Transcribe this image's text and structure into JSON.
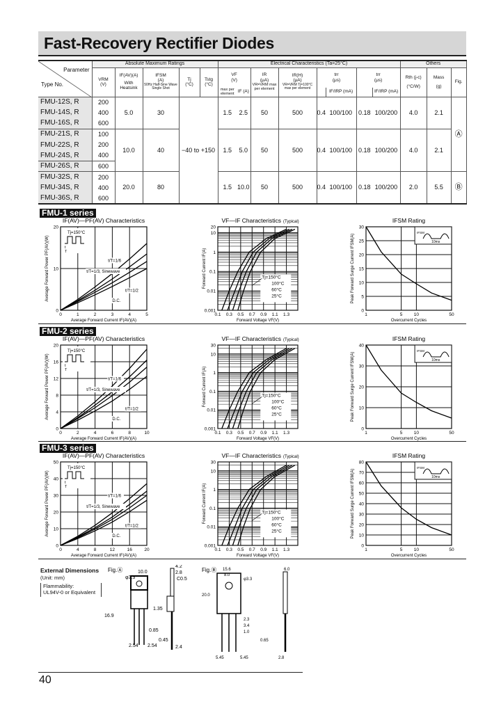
{
  "title": "Fast-Recovery Rectifier Diodes",
  "table": {
    "group_headers": {
      "amr": "Absolute Maximum Ratings",
      "ec": "Electrical Characteristics (Ta=25°C)",
      "others": "Others"
    },
    "headers": {
      "parameter": "Parameter",
      "type_no": "Type No.",
      "vrm": "VRM",
      "vrm_unit": "(V)",
      "ifav": "IF(AV)(A)",
      "ifav_cond": "With Heatsink",
      "ifsm": "IFSM",
      "ifsm_unit": "(A)",
      "ifsm_cond": "50Hz Half-Sine Wave Single Shot",
      "tj": "Tj",
      "tj_unit": "(°C)",
      "tstg": "Tstg",
      "tstg_unit": "(°C)",
      "vf": "VF",
      "vf_unit": "(V)",
      "vf_cond": "max per element",
      "if_cond": "IF (A)",
      "ir": "IR",
      "ir_unit": "(μA)",
      "ir_cond": "VR=VRM max per element",
      "irh": "IR(H)",
      "irh_unit": "(μA)",
      "irh_cond": "VR=VRM Tj=100°C max per element",
      "trr1": "trr",
      "trr1_unit": "(μs)",
      "trr1_cond": "IF/IRP (mA)",
      "trr2": "trr",
      "trr2_unit": "(μs)",
      "trr2_cond": "IF/IRP (mA)",
      "rth": "Rth (j-c)",
      "rth_unit": "(°C/W)",
      "mass": "Mass",
      "mass_unit": "(g)",
      "fig": "Fig."
    },
    "rows": [
      {
        "type": "FMU-12S, R",
        "vrm": "200"
      },
      {
        "type": "FMU-14S, R",
        "vrm": "400"
      },
      {
        "type": "FMU-16S, R",
        "vrm": "600"
      },
      {
        "type": "FMU-21S, R",
        "vrm": "100"
      },
      {
        "type": "FMU-22S, R",
        "vrm": "200"
      },
      {
        "type": "FMU-24S, R",
        "vrm": "400"
      },
      {
        "type": "FMU-26S, R",
        "vrm": "600"
      },
      {
        "type": "FMU-32S, R",
        "vrm": "200"
      },
      {
        "type": "FMU-34S, R",
        "vrm": "400"
      },
      {
        "type": "FMU-36S, R",
        "vrm": "600"
      }
    ],
    "groups": [
      {
        "ifav": "5.0",
        "ifsm": "30",
        "vf": "1.5",
        "if": "2.5",
        "ir": "50",
        "irh": "500",
        "trr1": "0.4",
        "cond1": "100/100",
        "trr2": "0.18",
        "cond2": "100/200",
        "rth": "4.0",
        "mass": "2.1"
      },
      {
        "ifav": "10.0",
        "ifsm": "40",
        "vf": "1.5",
        "if": "5.0",
        "ir": "50",
        "irh": "500",
        "trr1": "0.4",
        "cond1": "100/100",
        "trr2": "0.18",
        "cond2": "100/200",
        "rth": "4.0",
        "mass": "2.1"
      },
      {
        "ifav": "20.0",
        "ifsm": "80",
        "vf": "1.5",
        "if": "10.0",
        "ir": "50",
        "irh": "500",
        "trr1": "0.4",
        "cond1": "100/100",
        "trr2": "0.18",
        "cond2": "100/200",
        "rth": "2.0",
        "mass": "5.5"
      }
    ],
    "temp_range": "−40 to +150",
    "figs": [
      "Ⓐ",
      "Ⓑ"
    ]
  },
  "series_tags": [
    "FMU-1 series",
    "FMU-2 series",
    "FMU-3 series"
  ],
  "chart_data": [
    {
      "type": "line",
      "title": "IF(AV)—PF(AV) Characteristics",
      "xlabel": "Average Forward Current  IF(AV)(A)",
      "ylabel": "Average Forward Power  PF(AV)(W)",
      "xlim": [
        0,
        5
      ],
      "ylim": [
        0,
        20
      ],
      "xticks": [
        0,
        1,
        2,
        3,
        4,
        5
      ],
      "yticks": [
        0,
        10,
        20
      ],
      "xscale": "linear",
      "yscale": "linear",
      "inset": "Tj=150°C",
      "x": [
        0,
        1,
        2,
        3,
        4,
        5
      ],
      "series": [
        {
          "name": "t/T=1/6",
          "values": [
            0,
            2.6,
            5.6,
            8.8,
            12.3,
            16
          ]
        },
        {
          "name": "t/T=1/3, Sinewave",
          "values": [
            0,
            2.3,
            4.8,
            7.5,
            10.4,
            13.5
          ]
        },
        {
          "name": "t/T=1/2",
          "values": [
            0,
            2.1,
            4.3,
            6.6,
            9.1,
            11.7
          ]
        },
        {
          "name": "D.C.",
          "values": [
            0,
            1.8,
            3.7,
            5.7,
            7.8,
            10
          ]
        }
      ]
    },
    {
      "type": "line",
      "title": "VF—IF Characteristics",
      "title_note": "(Typical)",
      "xlabel": "Forward Voltage  VF(V)",
      "ylabel": "Forward Current  IF(A)",
      "xlim": [
        0.1,
        1.5
      ],
      "ylim": [
        0.001,
        20
      ],
      "xticks": [
        0.1,
        0.3,
        0.5,
        0.7,
        0.9,
        1.1,
        1.3
      ],
      "yticks": [
        0.001,
        0.01,
        0.1,
        1,
        10,
        20
      ],
      "xscale": "linear",
      "yscale": "log",
      "series": [
        {
          "name": "Tj=150°C",
          "x": [
            0.17,
            0.3,
            0.45,
            0.65,
            0.95,
            1.3
          ],
          "values": [
            0.001,
            0.01,
            0.1,
            1,
            5,
            15
          ]
        },
        {
          "name": "100°C",
          "x": [
            0.27,
            0.4,
            0.53,
            0.72,
            1.0,
            1.35
          ],
          "values": [
            0.001,
            0.01,
            0.1,
            1,
            5,
            15
          ]
        },
        {
          "name": "60°C",
          "x": [
            0.36,
            0.47,
            0.6,
            0.78,
            1.05,
            1.4
          ],
          "values": [
            0.001,
            0.01,
            0.1,
            1,
            5,
            15
          ]
        },
        {
          "name": "25°C",
          "x": [
            0.45,
            0.55,
            0.67,
            0.85,
            1.1,
            1.45
          ],
          "values": [
            0.001,
            0.01,
            0.1,
            1,
            5,
            15
          ]
        }
      ]
    },
    {
      "type": "line",
      "title": "IFSM  Rating",
      "xlabel": "Overcurrent Cycles",
      "ylabel": "Peak Forward Surge Current  IFSM(A)",
      "xlim": [
        1,
        50
      ],
      "ylim": [
        0,
        30
      ],
      "xticks": [
        1,
        5,
        10,
        50
      ],
      "yticks": [
        0,
        5,
        10,
        15,
        20,
        25,
        30
      ],
      "xscale": "log",
      "yscale": "linear",
      "inset": "10ms",
      "series": [
        {
          "x": [
            1,
            2,
            5,
            10,
            20,
            50
          ],
          "values": [
            30,
            21,
            13,
            9.5,
            6.2,
            3.6
          ]
        }
      ]
    },
    {
      "type": "line",
      "title": "IF(AV)—PF(AV) Characteristics",
      "xlabel": "Average Forward Current  IF(AV)(A)",
      "ylabel": "Average Forward Power  PF(AV)(W)",
      "xlim": [
        0,
        10
      ],
      "ylim": [
        0,
        20
      ],
      "xticks": [
        0,
        2,
        4,
        6,
        8,
        10
      ],
      "yticks": [
        0,
        4,
        8,
        12,
        16,
        20
      ],
      "xscale": "linear",
      "yscale": "linear",
      "inset": "Tj=150°C",
      "x": [
        0,
        2,
        4,
        6,
        8,
        10
      ],
      "series": [
        {
          "name": "t/T=1/6",
          "values": [
            0,
            3,
            6.4,
            10.2,
            14.4,
            19
          ]
        },
        {
          "name": "t/T=1/3, Sinewave",
          "values": [
            0,
            2.6,
            5.6,
            8.8,
            12.4,
            16.4
          ]
        },
        {
          "name": "t/T=1/2",
          "values": [
            0,
            2.4,
            5,
            7.9,
            11.1,
            14.7
          ]
        },
        {
          "name": "D.C.",
          "values": [
            0,
            2,
            4.2,
            6.6,
            9.4,
            12.5
          ]
        }
      ]
    },
    {
      "type": "line",
      "title": "VF—IF Characteristics",
      "title_note": "(Typical)",
      "xlabel": "Forward Voltage  VF(V)",
      "ylabel": "Forward Current  IF(A)",
      "xlim": [
        0.1,
        1.5
      ],
      "ylim": [
        0.001,
        30
      ],
      "xticks": [
        0.1,
        0.3,
        0.5,
        0.7,
        0.9,
        1.1,
        1.3
      ],
      "yticks": [
        0.001,
        0.01,
        0.1,
        1,
        10,
        30
      ],
      "xscale": "linear",
      "yscale": "log",
      "series": [
        {
          "name": "Tj=150°C",
          "x": [
            0.17,
            0.3,
            0.45,
            0.65,
            0.95,
            1.3
          ],
          "values": [
            0.001,
            0.01,
            0.1,
            1,
            5,
            20
          ]
        },
        {
          "name": "100°C",
          "x": [
            0.27,
            0.4,
            0.53,
            0.72,
            1.0,
            1.35
          ],
          "values": [
            0.001,
            0.01,
            0.1,
            1,
            5,
            20
          ]
        },
        {
          "name": "60°C",
          "x": [
            0.36,
            0.47,
            0.6,
            0.78,
            1.05,
            1.4
          ],
          "values": [
            0.001,
            0.01,
            0.1,
            1,
            5,
            20
          ]
        },
        {
          "name": "25°C",
          "x": [
            0.45,
            0.55,
            0.67,
            0.85,
            1.1,
            1.45
          ],
          "values": [
            0.001,
            0.01,
            0.1,
            1,
            5,
            20
          ]
        }
      ]
    },
    {
      "type": "line",
      "title": "IFSM  Rating",
      "xlabel": "Overcurrent Cycles",
      "ylabel": "Peak Forward Surge Current  IFSM(A)",
      "xlim": [
        1,
        50
      ],
      "ylim": [
        0,
        40
      ],
      "xticks": [
        1,
        5,
        10,
        50
      ],
      "yticks": [
        0,
        10,
        20,
        30,
        40
      ],
      "xscale": "log",
      "yscale": "linear",
      "inset": "10ms",
      "series": [
        {
          "x": [
            1,
            2,
            5,
            10,
            20,
            50
          ],
          "values": [
            40,
            28,
            17,
            12.5,
            8.5,
            5
          ]
        }
      ]
    },
    {
      "type": "line",
      "title": "IF(AV)—PF(AV) Characteristics",
      "xlabel": "Average Forward Current  IF(AV)(A)",
      "ylabel": "Average Forward Power  PF(AV)(W)",
      "xlim": [
        0,
        20
      ],
      "ylim": [
        0,
        50
      ],
      "xticks": [
        0,
        4,
        8,
        12,
        16,
        20
      ],
      "yticks": [
        0,
        10,
        20,
        30,
        40,
        50
      ],
      "xscale": "linear",
      "yscale": "linear",
      "inset": "Tj=150°C",
      "x": [
        0,
        4,
        8,
        12,
        16,
        20
      ],
      "series": [
        {
          "name": "t/T=1/6",
          "values": [
            0,
            5.5,
            12,
            19.5,
            28,
            37
          ]
        },
        {
          "name": "t/T=1/3, Sinewave",
          "values": [
            0,
            5,
            10.6,
            17,
            24.5,
            32.5
          ]
        },
        {
          "name": "t/T=1/2",
          "values": [
            0,
            4.6,
            9.8,
            15.6,
            22.5,
            30
          ]
        },
        {
          "name": "D.C.",
          "values": [
            0,
            4.1,
            8.7,
            14,
            20.2,
            27
          ]
        }
      ]
    },
    {
      "type": "line",
      "title": "VF—IF Characteristics",
      "title_note": "(Typical)",
      "xlabel": "Forward Voltage  VF(V)",
      "ylabel": "Forward Current  IF(A)",
      "xlim": [
        0.1,
        1.5
      ],
      "ylim": [
        0.001,
        30
      ],
      "xticks": [
        0.1,
        0.3,
        0.5,
        0.7,
        0.9,
        1.1,
        1.3
      ],
      "yticks": [
        0.001,
        0.01,
        0.1,
        1,
        10,
        30
      ],
      "xscale": "linear",
      "yscale": "log",
      "series": [
        {
          "name": "Tj=150°C",
          "x": [
            0.17,
            0.3,
            0.45,
            0.65,
            0.95,
            1.3
          ],
          "values": [
            0.001,
            0.01,
            0.1,
            1,
            5,
            20
          ]
        },
        {
          "name": "100°C",
          "x": [
            0.27,
            0.4,
            0.53,
            0.72,
            1.0,
            1.35
          ],
          "values": [
            0.001,
            0.01,
            0.1,
            1,
            5,
            20
          ]
        },
        {
          "name": "60°C",
          "x": [
            0.36,
            0.47,
            0.6,
            0.78,
            1.05,
            1.4
          ],
          "values": [
            0.001,
            0.01,
            0.1,
            1,
            5,
            20
          ]
        },
        {
          "name": "25°C",
          "x": [
            0.45,
            0.55,
            0.67,
            0.85,
            1.1,
            1.45
          ],
          "values": [
            0.001,
            0.01,
            0.1,
            1,
            5,
            20
          ]
        }
      ]
    },
    {
      "type": "line",
      "title": "IFSM  Rating",
      "xlabel": "Overcurrent Cycles",
      "ylabel": "Peak Forward Surge Current  IFSM(A)",
      "xlim": [
        1,
        50
      ],
      "ylim": [
        0,
        80
      ],
      "xticks": [
        1,
        5,
        10,
        50
      ],
      "yticks": [
        0,
        10,
        20,
        30,
        40,
        50,
        60,
        70,
        80
      ],
      "xscale": "log",
      "yscale": "linear",
      "inset": "10ms",
      "series": [
        {
          "x": [
            1,
            2,
            5,
            10,
            20,
            50
          ],
          "values": [
            80,
            57,
            36,
            25,
            17,
            10
          ]
        }
      ]
    }
  ],
  "dimensions": {
    "heading": "External Dimensions",
    "unit": "(Unit: mm)",
    "flammability": "Flammability:",
    "flammability_value": "UL94V-0 or Equivalent",
    "fig_a": {
      "label": "Fig.Ⓐ",
      "dims": [
        "φ3.3",
        "10.0",
        "4.2",
        "2.8",
        "C0.5",
        "16.9",
        "1.35",
        "0.85",
        "0.45",
        "2.54",
        "2.54",
        "2.4"
      ]
    },
    "fig_b": {
      "label": "Fig.Ⓑ",
      "dims": [
        "15.6",
        "8.0",
        "φ3.3",
        "20.0",
        "2.3",
        "3.4",
        "1.0",
        "0.65",
        "5.45",
        "5.45",
        "2.8",
        "6.0"
      ]
    }
  },
  "page_number": "40"
}
